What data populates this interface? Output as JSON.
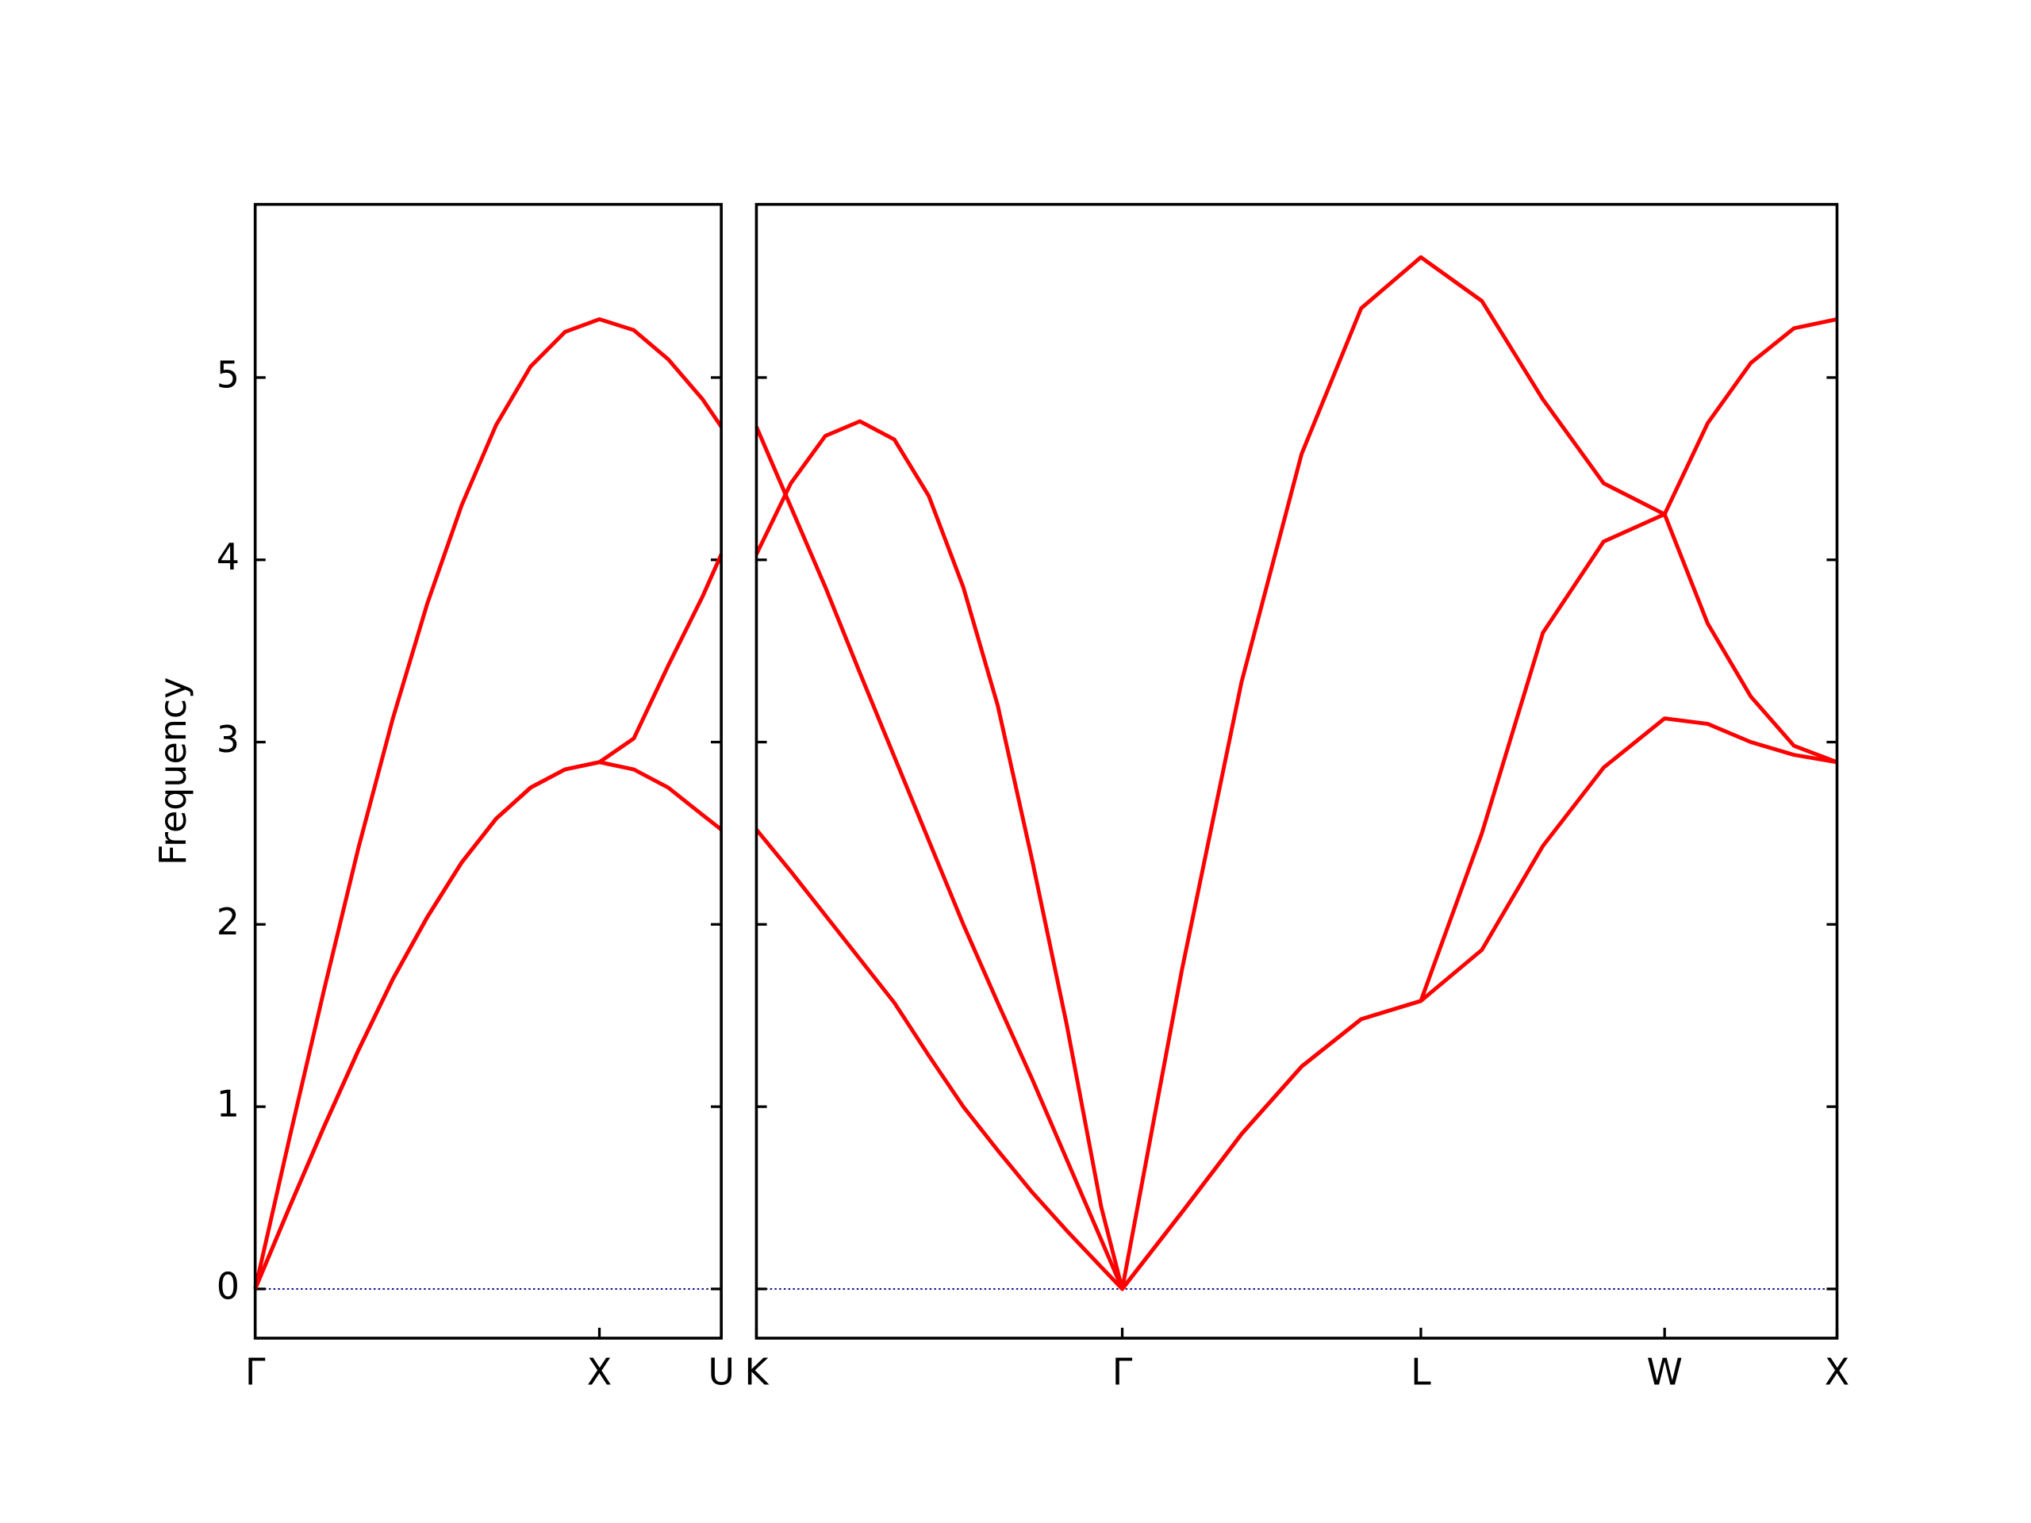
{
  "chart_data": [
    {
      "type": "line",
      "ylabel": "Frequency",
      "x": [
        0,
        0.1,
        0.2,
        0.3,
        0.4,
        0.5,
        0.6,
        0.7,
        0.8,
        0.9,
        1,
        1.1,
        1.2,
        1.3,
        1.354
      ],
      "series": [
        {
          "color": "#ff0000",
          "values": [
            0,
            0.45,
            0.89,
            1.31,
            1.7,
            2.04,
            2.34,
            2.58,
            2.75,
            2.85,
            2.89,
            2.85,
            2.75,
            2.6,
            2.52
          ]
        },
        {
          "color": "#ff0000",
          "values": [
            0,
            0.45,
            0.89,
            1.31,
            1.7,
            2.04,
            2.34,
            2.58,
            2.75,
            2.85,
            2.89,
            3.02,
            3.42,
            3.8,
            4.03
          ]
        },
        {
          "color": "#ff0000",
          "values": [
            0,
            0.83,
            1.64,
            2.42,
            3.13,
            3.76,
            4.3,
            4.74,
            5.06,
            5.25,
            5.32,
            5.26,
            5.1,
            4.88,
            4.73
          ]
        }
      ],
      "xlim": [
        0,
        1.354
      ],
      "xticks": [
        {
          "value": 0,
          "label": "Γ"
        },
        {
          "value": 1,
          "label": "X"
        },
        {
          "value": 1.354,
          "label": "U"
        }
      ],
      "ylim": [
        -0.27,
        5.95
      ],
      "yticks": [
        0,
        1,
        2,
        3,
        4,
        5
      ],
      "show_ytick_labels": true,
      "zero_line": {
        "value": 0,
        "color": "#00008b"
      }
    },
    {
      "type": "line",
      "x": [
        0,
        0.1,
        0.2,
        0.3,
        0.4,
        0.5,
        0.6,
        0.7,
        0.8,
        0.9,
        1.0,
        1.061,
        1.234,
        1.407,
        1.581,
        1.754,
        1.927,
        2.104,
        2.281,
        2.457,
        2.634,
        2.759,
        2.884,
        3.009,
        3.134
      ],
      "series": [
        {
          "color": "#ff0000",
          "values": [
            2.52,
            2.29,
            2.05,
            1.81,
            1.57,
            1.28,
            1.0,
            0.76,
            0.53,
            0.32,
            0.12,
            0,
            0.42,
            0.85,
            1.22,
            1.48,
            1.58,
            1.86,
            2.43,
            2.86,
            3.13,
            3.1,
            3.0,
            2.93,
            2.89
          ]
        },
        {
          "color": "#ff0000",
          "values": [
            4.73,
            4.29,
            3.85,
            3.38,
            2.92,
            2.46,
            2.0,
            1.57,
            1.15,
            0.71,
            0.27,
            0,
            0.42,
            0.85,
            1.22,
            1.48,
            1.58,
            2.5,
            3.6,
            4.1,
            4.25,
            4.75,
            5.08,
            5.27,
            5.32
          ]
        },
        {
          "color": "#ff0000",
          "values": [
            4.03,
            4.42,
            4.68,
            4.76,
            4.66,
            4.35,
            3.85,
            3.2,
            2.35,
            1.45,
            0.45,
            0,
            1.75,
            3.33,
            4.58,
            5.38,
            5.66,
            5.42,
            4.88,
            4.42,
            4.25,
            3.65,
            3.25,
            2.98,
            2.89
          ]
        }
      ],
      "xlim": [
        0,
        3.134
      ],
      "xticks": [
        {
          "value": 0,
          "label": "K"
        },
        {
          "value": 1.061,
          "label": "Γ"
        },
        {
          "value": 1.927,
          "label": "L"
        },
        {
          "value": 2.634,
          "label": "W"
        },
        {
          "value": 3.134,
          "label": "X"
        }
      ],
      "ylim": [
        -0.27,
        5.95
      ],
      "yticks": [
        0,
        1,
        2,
        3,
        4,
        5
      ],
      "show_ytick_labels": false,
      "zero_line": {
        "value": 0,
        "color": "#00008b"
      }
    }
  ]
}
